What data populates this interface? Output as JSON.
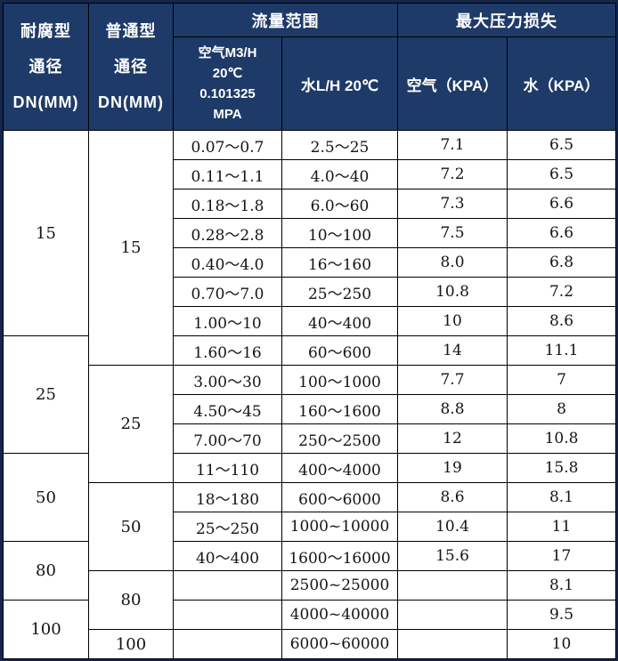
{
  "table": {
    "header": {
      "corrosion_dn": {
        "lines": [
          "耐腐型",
          "通径",
          "DN(MM)"
        ]
      },
      "normal_dn": {
        "lines": [
          "普通型",
          "通径",
          "DN(MM)"
        ]
      },
      "flow_range_group": "流量范围",
      "max_pressure_loss_group": "最大压力损失",
      "air_flow": {
        "lines": [
          "空气M3/H",
          "20℃",
          "0.101325",
          "MPA"
        ]
      },
      "water_flow": "水L/H 20℃",
      "air_kpa": "空气（KPA）",
      "water_kpa": "水（KPA）"
    },
    "corrosion_dn_groups": [
      {
        "label": "15",
        "rowspan": 7
      },
      {
        "label": "25",
        "rowspan": 4
      },
      {
        "label": "50",
        "rowspan": 3
      },
      {
        "label": "80",
        "rowspan": 2
      },
      {
        "label": "100",
        "rowspan": 2
      }
    ],
    "normal_dn_groups": [
      {
        "label": "15",
        "rowspan": 8
      },
      {
        "label": "25",
        "rowspan": 4
      },
      {
        "label": "50",
        "rowspan": 3
      },
      {
        "label": "80",
        "rowspan": 2
      },
      {
        "label": "100",
        "rowspan": 1
      }
    ],
    "rows": [
      {
        "air": "0.07～0.7",
        "water": "2.5～25",
        "air_kpa": "7.1",
        "water_kpa": "6.5"
      },
      {
        "air": "0.11～1.1",
        "water": "4.0～40",
        "air_kpa": "7.2",
        "water_kpa": "6.5"
      },
      {
        "air": "0.18～1.8",
        "water": "6.0～60",
        "air_kpa": "7.3",
        "water_kpa": "6.6"
      },
      {
        "air": "0.28～2.8",
        "water": "10～100",
        "air_kpa": "7.5",
        "water_kpa": "6.6"
      },
      {
        "air": "0.40～4.0",
        "water": "16～160",
        "air_kpa": "8.0",
        "water_kpa": "6.8"
      },
      {
        "air": "0.70～7.0",
        "water": "25～250",
        "air_kpa": "10.8",
        "water_kpa": "7.2"
      },
      {
        "air": "1.00～10",
        "water": "40～400",
        "air_kpa": "10",
        "water_kpa": "8.6"
      },
      {
        "air": "1.60～16",
        "water": "60～600",
        "air_kpa": "14",
        "water_kpa": "11.1"
      },
      {
        "air": "3.00～30",
        "water": "100～1000",
        "air_kpa": "7.7",
        "water_kpa": "7"
      },
      {
        "air": "4.50～45",
        "water": "160～1600",
        "air_kpa": "8.8",
        "water_kpa": "8"
      },
      {
        "air": "7.00～70",
        "water": "250～2500",
        "air_kpa": "12",
        "water_kpa": "10.8"
      },
      {
        "air": "11～110",
        "water": "400～4000",
        "air_kpa": "19",
        "water_kpa": "15.8"
      },
      {
        "air": "18～180",
        "water": "600～6000",
        "air_kpa": "8.6",
        "water_kpa": "8.1"
      },
      {
        "air": "25～250",
        "water": "1000~10000",
        "air_kpa": "10.4",
        "water_kpa": "11"
      },
      {
        "air": "40～400",
        "water": "1600～16000",
        "air_kpa": "15.6",
        "water_kpa": "17"
      },
      {
        "air": "",
        "water": "2500~25000",
        "air_kpa": "",
        "water_kpa": "8.1"
      },
      {
        "air": "",
        "water": "4000~40000",
        "air_kpa": "",
        "water_kpa": "9.5"
      },
      {
        "air": "",
        "water": "6000~60000",
        "air_kpa": "",
        "water_kpa": "10"
      }
    ],
    "colors": {
      "header_bg": "#1e3a68",
      "header_text": "#ffffff",
      "grid_line": "#000000",
      "outer_border": "#14264a",
      "body_text": "#141414"
    }
  }
}
